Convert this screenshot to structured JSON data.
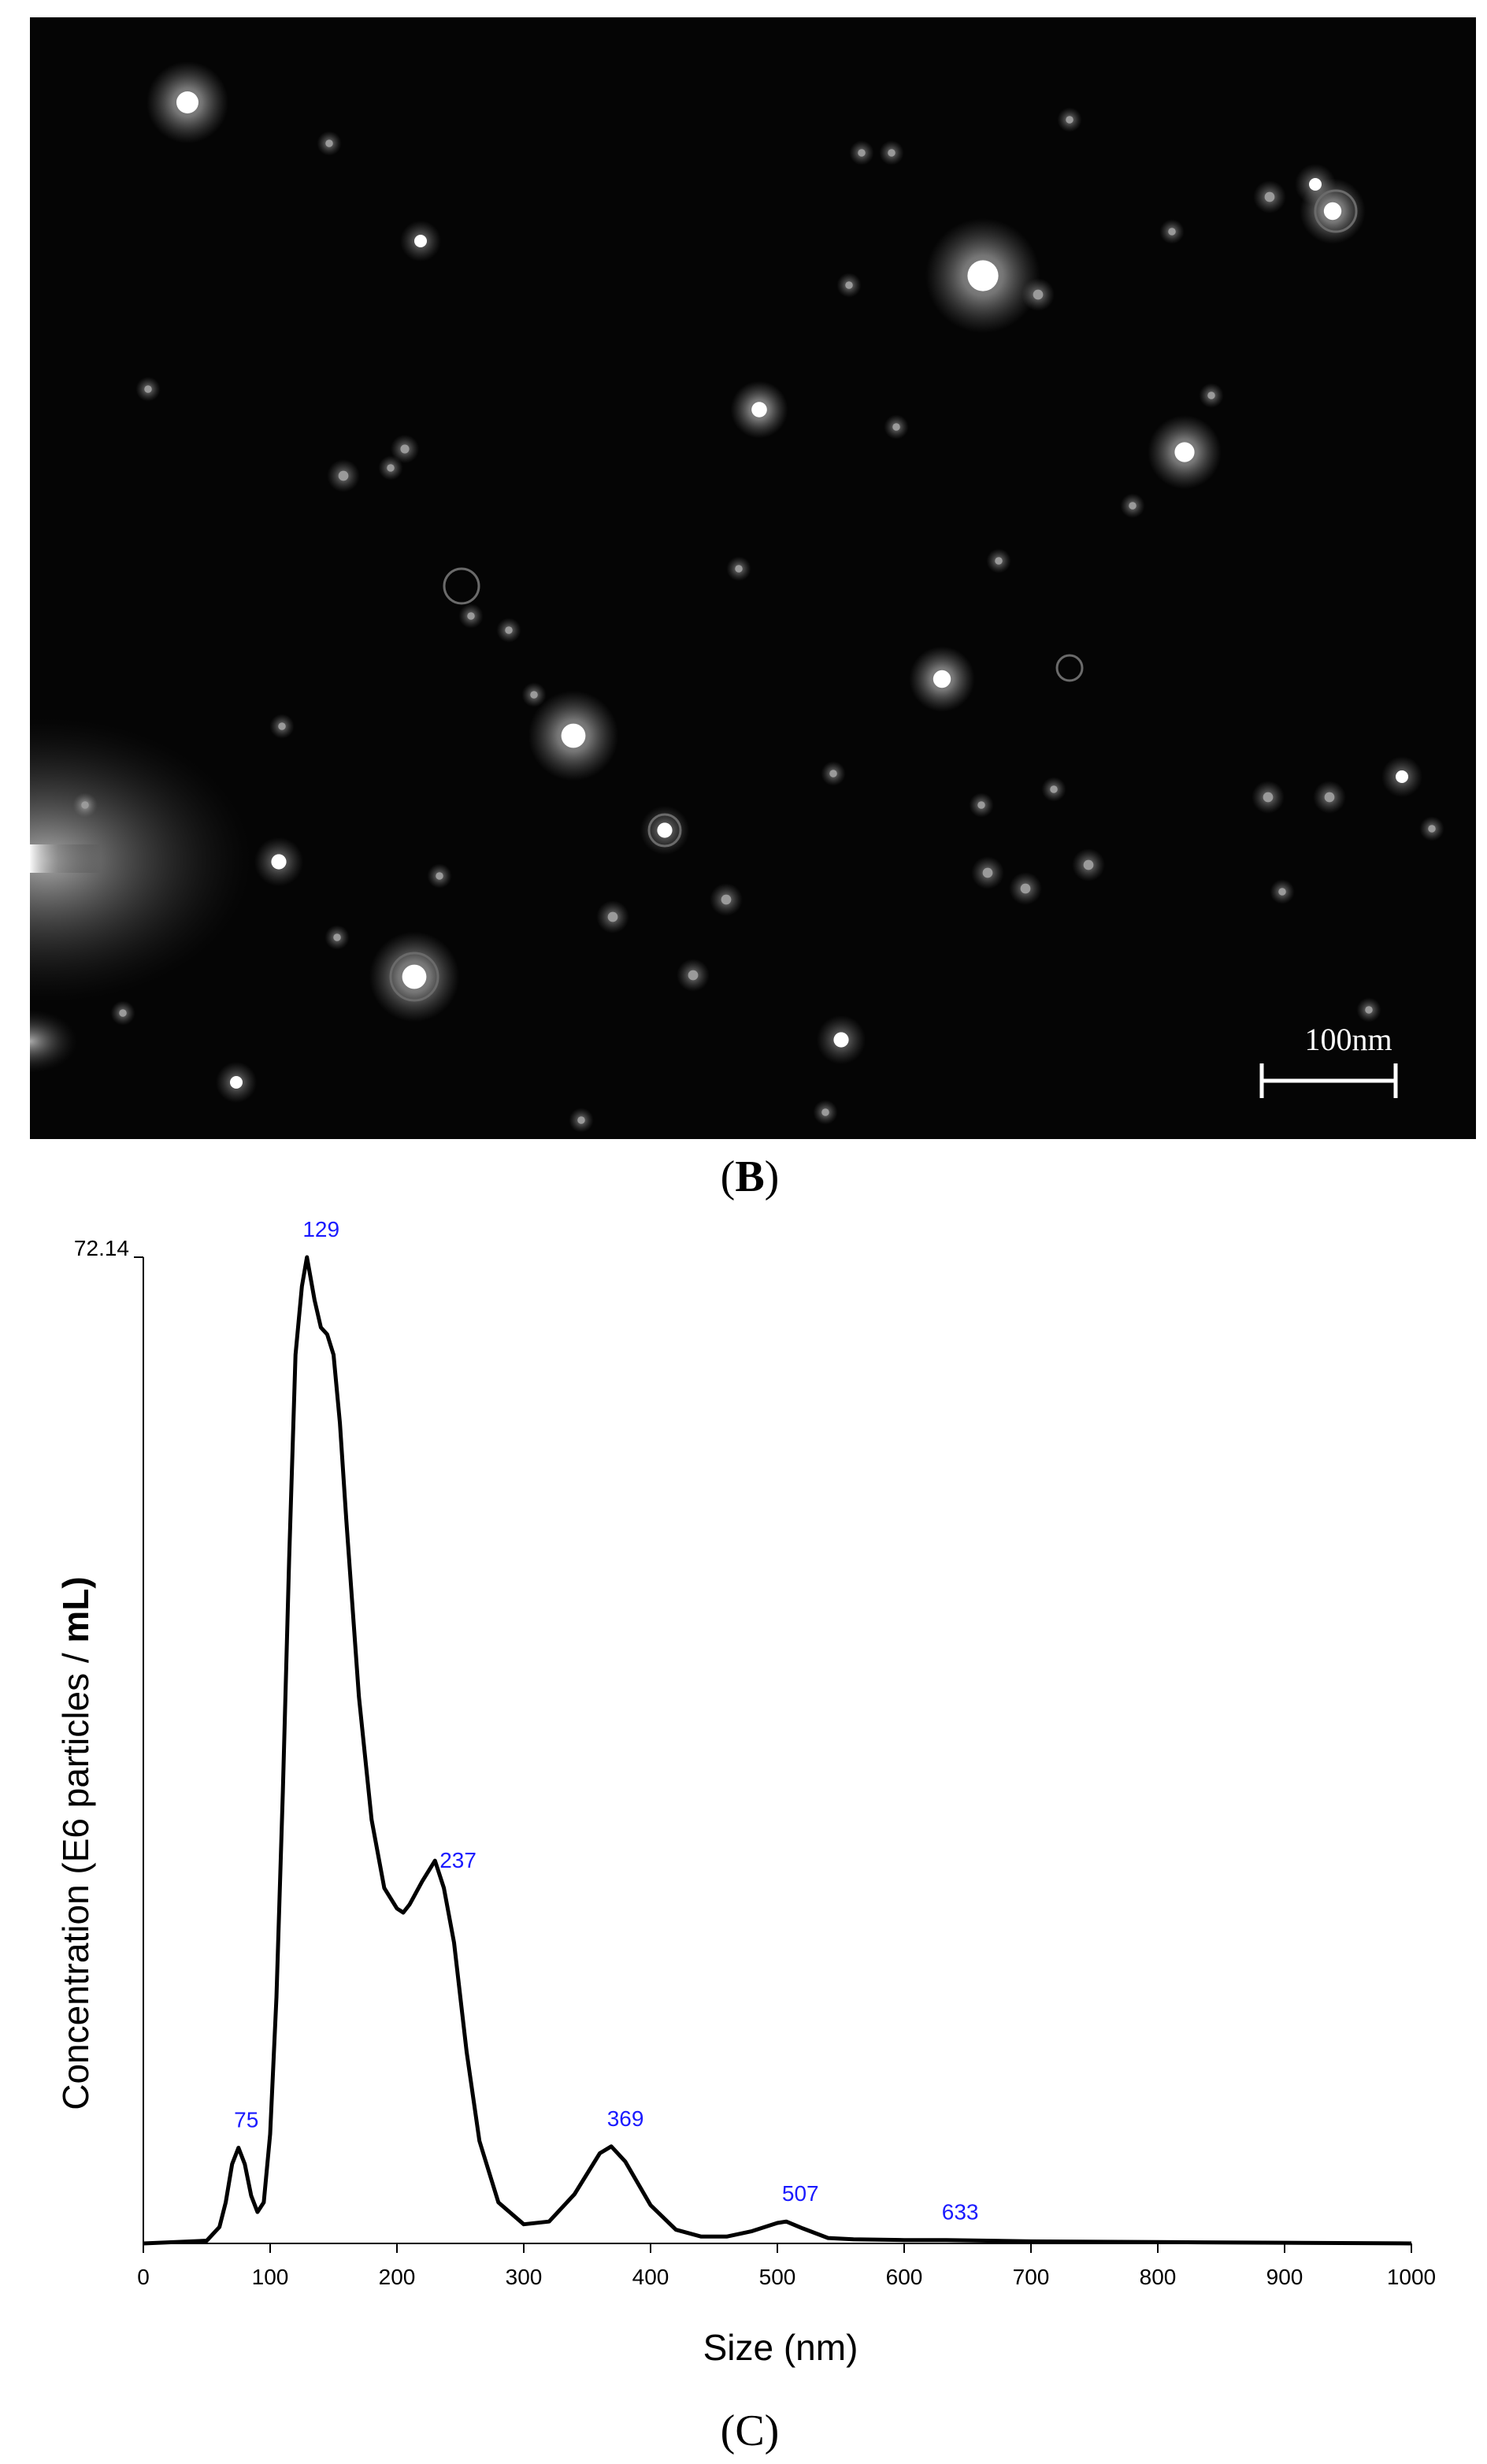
{
  "panels": {
    "micrograph": {
      "label_letter": "B",
      "scale_bar_label": "100nm"
    },
    "plot": {
      "label_letter": "C"
    }
  },
  "chart_data": {
    "type": "line",
    "xlabel": "Size (nm)",
    "ylabel_main": "Concentration (E6 particles / ",
    "ylabel_unit": "mL)",
    "xlim": [
      0,
      1000
    ],
    "ylim": [
      0,
      72.14
    ],
    "y_max_tick_label": "72.14",
    "x_ticks": [
      0,
      100,
      200,
      300,
      400,
      500,
      600,
      700,
      800,
      900,
      1000
    ],
    "peak_labels": [
      "75",
      "129",
      "237",
      "369",
      "507",
      "633"
    ],
    "peak_x": [
      75,
      129,
      237,
      369,
      507,
      633
    ],
    "peak_y": [
      7.0,
      72.14,
      26.0,
      7.1,
      1.6,
      0.25
    ],
    "x": [
      0,
      50,
      60,
      65,
      70,
      75,
      80,
      85,
      90,
      95,
      100,
      105,
      110,
      115,
      120,
      125,
      129,
      135,
      140,
      145,
      150,
      155,
      160,
      170,
      180,
      190,
      200,
      205,
      210,
      220,
      230,
      237,
      245,
      255,
      265,
      280,
      300,
      320,
      340,
      360,
      369,
      380,
      400,
      420,
      440,
      460,
      480,
      500,
      507,
      520,
      540,
      560,
      600,
      633,
      700,
      800,
      900,
      1000
    ],
    "y": [
      0,
      0.2,
      1.2,
      3.0,
      5.8,
      7.0,
      5.8,
      3.5,
      2.3,
      3.0,
      8.0,
      18.0,
      33.0,
      50.0,
      65.0,
      70.0,
      72.14,
      69.0,
      67.0,
      66.5,
      65.0,
      60.0,
      53.0,
      40.0,
      31.0,
      26.0,
      24.5,
      24.2,
      24.8,
      26.5,
      28.0,
      26.0,
      22.0,
      14.0,
      7.5,
      3.0,
      1.4,
      1.6,
      3.6,
      6.6,
      7.1,
      6.0,
      2.8,
      1.0,
      0.5,
      0.5,
      0.9,
      1.5,
      1.6,
      1.1,
      0.4,
      0.3,
      0.25,
      0.25,
      0.15,
      0.1,
      0.05,
      0
    ]
  }
}
